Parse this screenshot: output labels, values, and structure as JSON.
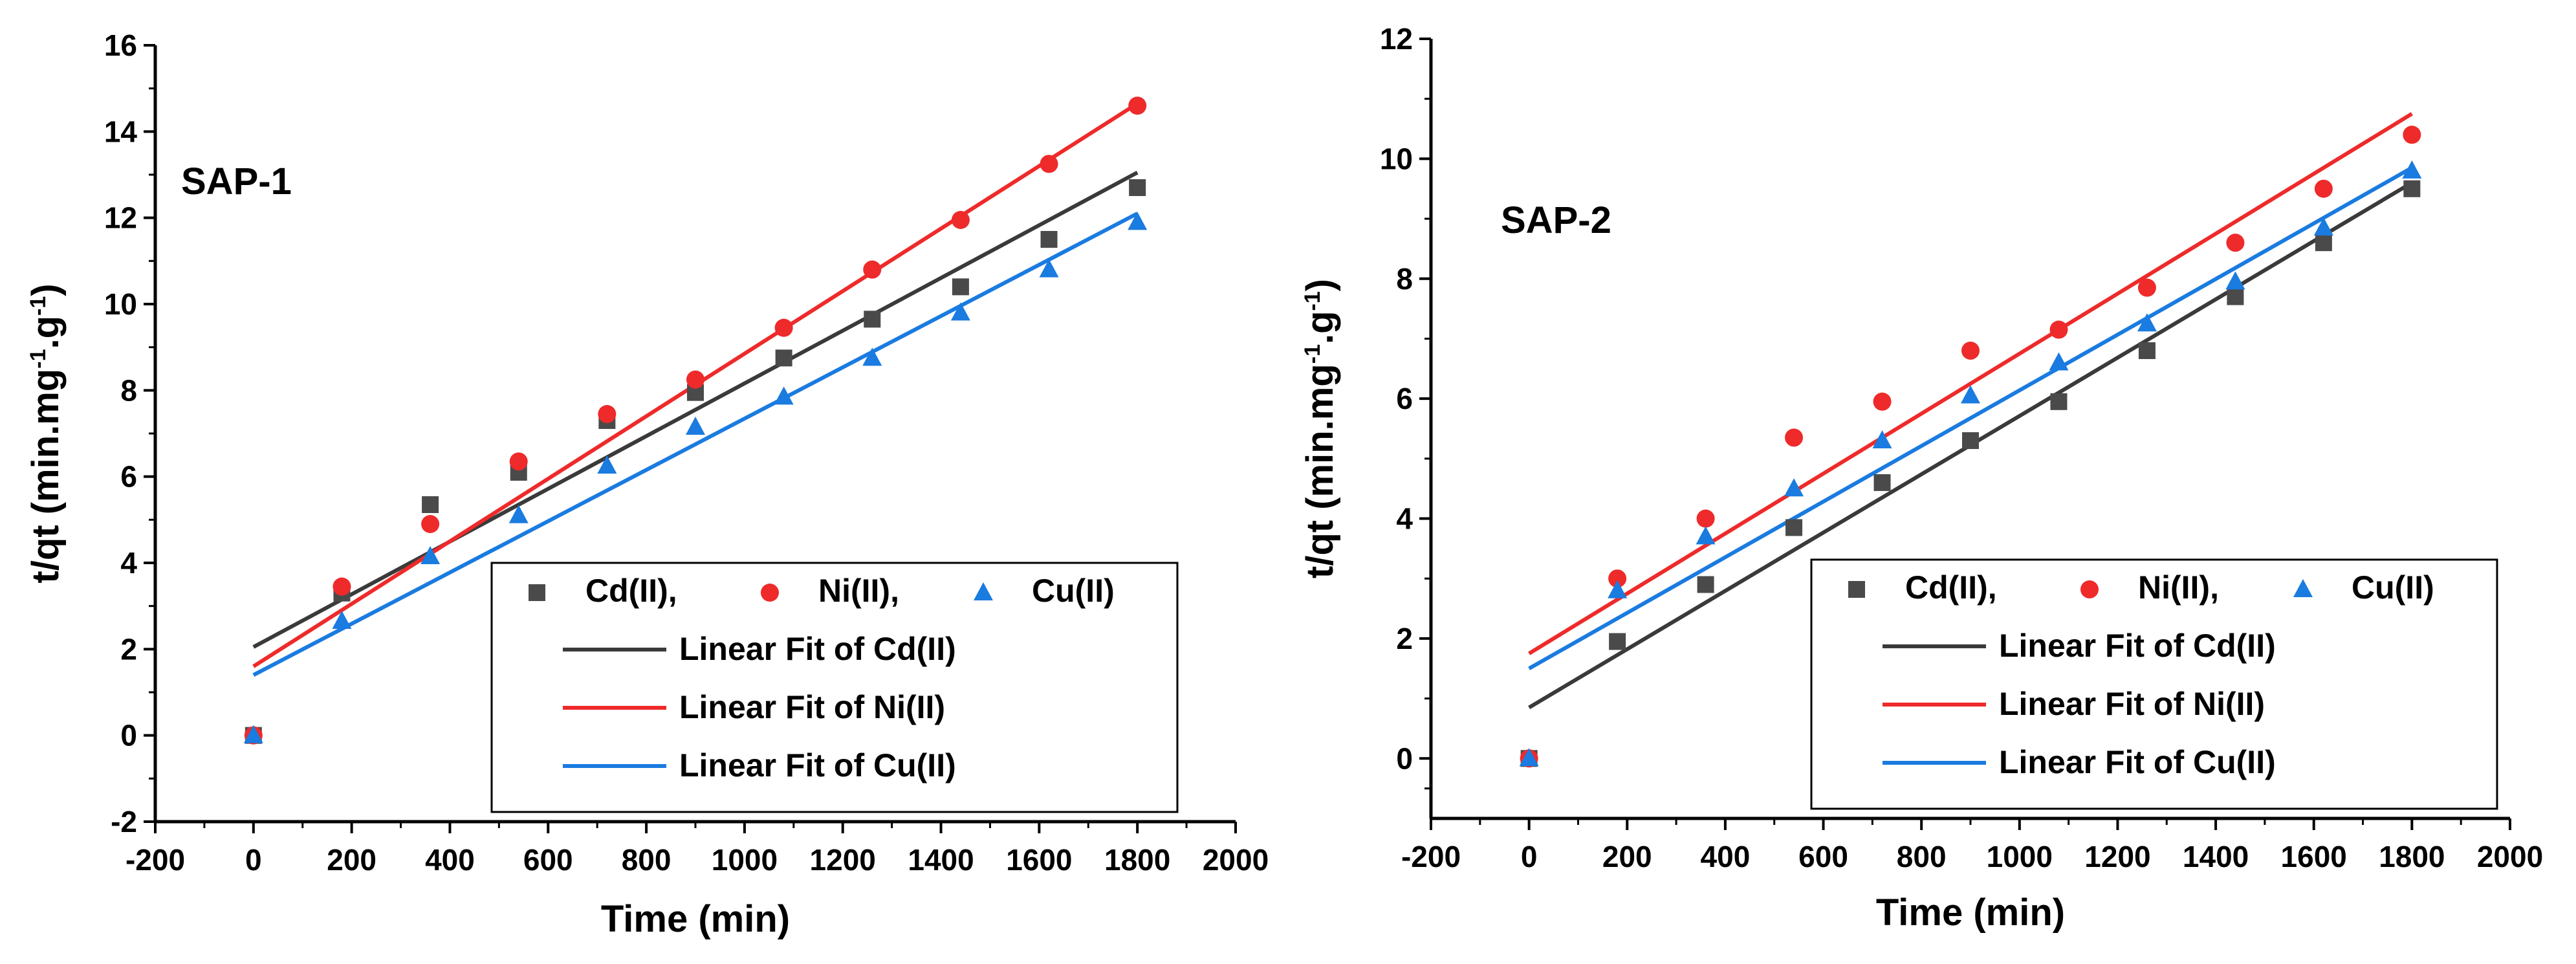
{
  "chart_data": [
    {
      "type": "scatter",
      "panel_label": "SAP-1",
      "xlabel": "Time (min)",
      "ylabel_main": "t/qt (min.mg",
      "ylabel_sup1": "-1",
      "ylabel_mid": ".g",
      "ylabel_sup2": "-1",
      "ylabel_end": ")",
      "xlim": [
        -200,
        2000
      ],
      "ylim": [
        -2,
        16
      ],
      "xticks": [
        -200,
        0,
        200,
        400,
        600,
        800,
        1000,
        1200,
        1400,
        1600,
        1800,
        2000
      ],
      "yticks": [
        -2,
        0,
        2,
        4,
        6,
        8,
        10,
        12,
        14,
        16
      ],
      "series": [
        {
          "name": "Cd(II),",
          "marker": "square",
          "color": "#4a4a4a",
          "x": [
            0,
            180,
            360,
            540,
            720,
            900,
            1080,
            1260,
            1440,
            1620,
            1800
          ],
          "y": [
            0,
            3.3,
            5.35,
            6.1,
            7.3,
            7.95,
            8.75,
            9.65,
            10.4,
            11.5,
            12.7
          ]
        },
        {
          "name": "Ni(II),",
          "marker": "circle",
          "color": "#ee2a2a",
          "x": [
            0,
            180,
            360,
            540,
            720,
            900,
            1080,
            1260,
            1440,
            1620,
            1800
          ],
          "y": [
            0,
            3.45,
            4.9,
            6.35,
            7.45,
            8.25,
            9.45,
            10.8,
            11.95,
            13.25,
            14.6
          ]
        },
        {
          "name": "Cu(II)",
          "marker": "triangle",
          "color": "#1a7be0",
          "x": [
            0,
            180,
            360,
            540,
            720,
            900,
            1080,
            1260,
            1440,
            1620,
            1800
          ],
          "y": [
            0,
            2.65,
            4.15,
            5.1,
            6.25,
            7.15,
            7.85,
            8.75,
            9.8,
            10.8,
            11.9
          ]
        }
      ],
      "fits": [
        {
          "name": "Linear Fit of Cd(II)",
          "color": "#3a3a3a",
          "x": [
            0,
            1800
          ],
          "y": [
            2.05,
            13.05
          ]
        },
        {
          "name": "Linear Fit of Ni(II)",
          "color": "#ee2a2a",
          "x": [
            0,
            1800
          ],
          "y": [
            1.6,
            14.65
          ]
        },
        {
          "name": "Linear Fit of Cu(II)",
          "color": "#1a7be0",
          "x": [
            0,
            1800
          ],
          "y": [
            1.4,
            12.1
          ]
        }
      ],
      "legend_position": "lower-right"
    },
    {
      "type": "scatter",
      "panel_label": "SAP-2",
      "xlabel": "Time (min)",
      "ylabel_main": "t/qt (min.mg",
      "ylabel_sup1": "-1",
      "ylabel_mid": ".g",
      "ylabel_sup2": "-1",
      "ylabel_end": ")",
      "xlim": [
        -200,
        2000
      ],
      "ylim": [
        -1,
        12
      ],
      "xticks": [
        -200,
        0,
        200,
        400,
        600,
        800,
        1000,
        1200,
        1400,
        1600,
        1800,
        2000
      ],
      "yticks": [
        0,
        2,
        4,
        6,
        8,
        10,
        12
      ],
      "series": [
        {
          "name": "Cd(II),",
          "marker": "square",
          "color": "#4a4a4a",
          "x": [
            0,
            180,
            360,
            540,
            720,
            900,
            1080,
            1260,
            1440,
            1620,
            1800
          ],
          "y": [
            0,
            1.95,
            2.9,
            3.85,
            4.6,
            5.3,
            5.95,
            6.8,
            7.7,
            8.6,
            9.5
          ]
        },
        {
          "name": "Ni(II),",
          "marker": "circle",
          "color": "#ee2a2a",
          "x": [
            0,
            180,
            360,
            540,
            720,
            900,
            1080,
            1260,
            1440,
            1620,
            1800
          ],
          "y": [
            0,
            3.0,
            4.0,
            5.35,
            5.95,
            6.8,
            7.15,
            7.85,
            8.6,
            9.5,
            10.4
          ]
        },
        {
          "name": "Cu(II)",
          "marker": "triangle",
          "color": "#1a7be0",
          "x": [
            0,
            180,
            360,
            540,
            720,
            900,
            1080,
            1260,
            1440,
            1620,
            1800
          ],
          "y": [
            0,
            2.8,
            3.7,
            4.5,
            5.3,
            6.05,
            6.6,
            7.25,
            7.95,
            8.85,
            9.8
          ]
        }
      ],
      "fits": [
        {
          "name": "Linear Fit of Cd(II)",
          "color": "#3a3a3a",
          "x": [
            0,
            1800
          ],
          "y": [
            0.85,
            9.6
          ]
        },
        {
          "name": "Linear Fit of Ni(II)",
          "color": "#ee2a2a",
          "x": [
            0,
            1800
          ],
          "y": [
            1.75,
            10.75
          ]
        },
        {
          "name": "Linear Fit of Cu(II)",
          "color": "#1a7be0",
          "x": [
            0,
            1800
          ],
          "y": [
            1.5,
            9.85
          ]
        }
      ],
      "legend_position": "lower-right"
    }
  ]
}
